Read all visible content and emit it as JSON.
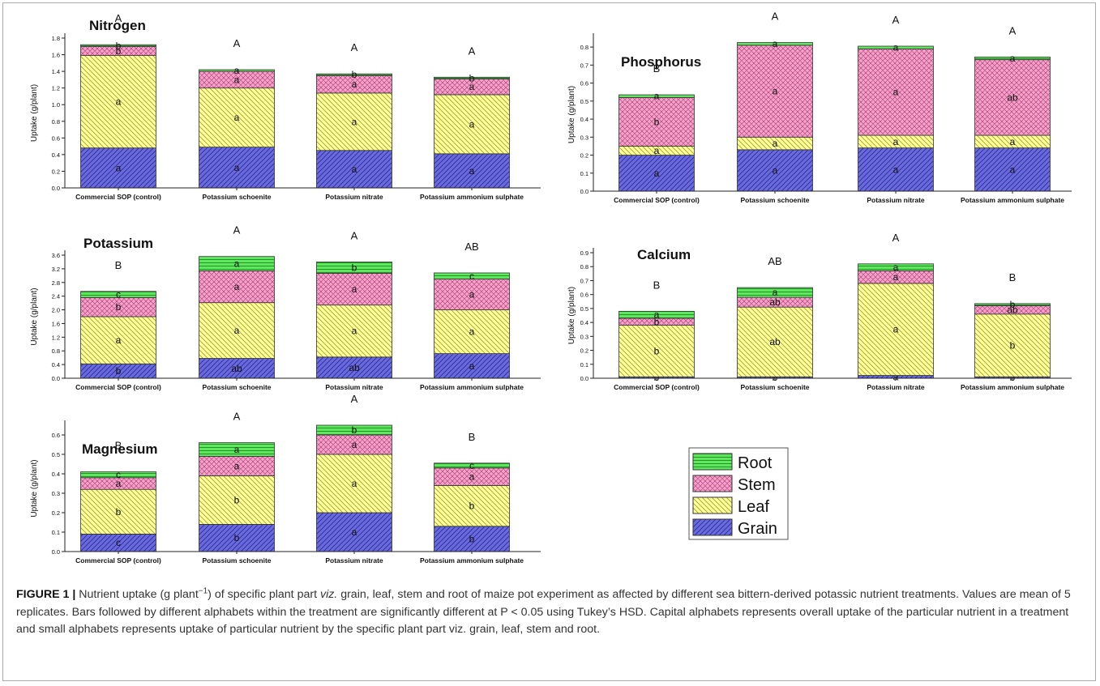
{
  "patterns": {
    "root": "#5ee85e",
    "stem": "#f2a3c9",
    "leaf": "#ffff99",
    "grain": "#6a6ae0"
  },
  "legend": {
    "items": [
      "Root",
      "Stem",
      "Leaf",
      "Grain"
    ]
  },
  "chart_data": [
    {
      "type": "bar",
      "stacked": true,
      "title": "Nitrogen",
      "xlabel": "",
      "ylabel": "Uptake (g/plant)",
      "ylim": [
        0,
        1.8
      ],
      "yticks": [
        "0.0",
        "0.2",
        "0.4",
        "0.6",
        "0.8",
        "1.0",
        "1.2",
        "1.4",
        "1.6",
        "1.8"
      ],
      "categories": [
        "Commercial SOP (control)",
        "Potassium schoenite",
        "Potassium nitrate",
        "Potassium ammonium sulphate"
      ],
      "series": [
        {
          "name": "Grain",
          "values": [
            0.48,
            0.49,
            0.45,
            0.41
          ],
          "labels": [
            "a",
            "a",
            "a",
            "a"
          ]
        },
        {
          "name": "Leaf",
          "values": [
            1.11,
            0.71,
            0.69,
            0.71
          ],
          "labels": [
            "a",
            "a",
            "a",
            "a"
          ]
        },
        {
          "name": "Stem",
          "values": [
            0.11,
            0.2,
            0.21,
            0.19
          ],
          "labels": [
            "b",
            "a",
            "a",
            "a"
          ]
        },
        {
          "name": "Root",
          "values": [
            0.02,
            0.02,
            0.02,
            0.02
          ],
          "labels": [
            "b",
            "a",
            "b",
            "b"
          ]
        }
      ],
      "totals_labels": [
        "A",
        "A",
        "A",
        "A"
      ]
    },
    {
      "type": "bar",
      "stacked": true,
      "title": "Phosphorus",
      "xlabel": "",
      "ylabel": "Uptake (g/plant)",
      "ylim": [
        0,
        0.85
      ],
      "yticks": [
        "0.0",
        "0.1",
        "0.2",
        "0.3",
        "0.4",
        "0.5",
        "0.6",
        "0.7",
        "0.8"
      ],
      "categories": [
        "Commercial SOP (control)",
        "Potassium schoenite",
        "Potassium nitrate",
        "Potassium ammonium sulphate"
      ],
      "series": [
        {
          "name": "Grain",
          "values": [
            0.2,
            0.23,
            0.24,
            0.24
          ],
          "labels": [
            "a",
            "a",
            "a",
            "a"
          ]
        },
        {
          "name": "Leaf",
          "values": [
            0.05,
            0.07,
            0.07,
            0.07
          ],
          "labels": [
            "a",
            "a",
            "a",
            "a"
          ]
        },
        {
          "name": "Stem",
          "values": [
            0.27,
            0.51,
            0.48,
            0.42
          ],
          "labels": [
            "b",
            "a",
            "a",
            "ab"
          ]
        },
        {
          "name": "Root",
          "values": [
            0.015,
            0.015,
            0.015,
            0.015
          ],
          "labels": [
            "a",
            "a",
            "a",
            "a"
          ]
        }
      ],
      "totals_labels": [
        "B",
        "A",
        "A",
        "A"
      ]
    },
    {
      "type": "bar",
      "stacked": true,
      "title": "Potassium",
      "xlabel": "",
      "ylabel": "Uptake (g/plant)",
      "ylim": [
        0,
        3.6
      ],
      "yticks": [
        "0.0",
        "0.4",
        "0.8",
        "1.2",
        "1.6",
        "2.0",
        "2.4",
        "2.8",
        "3.2",
        "3.6"
      ],
      "categories": [
        "Commercial SOP (control)",
        "Potassium schoenite",
        "Potassium nitrate",
        "Potassium ammonium sulphate"
      ],
      "series": [
        {
          "name": "Grain",
          "values": [
            0.42,
            0.58,
            0.62,
            0.72
          ],
          "labels": [
            "b",
            "ab",
            "ab",
            "a"
          ]
        },
        {
          "name": "Leaf",
          "values": [
            1.38,
            1.63,
            1.52,
            1.28
          ],
          "labels": [
            "a",
            "a",
            "a",
            "a"
          ]
        },
        {
          "name": "Stem",
          "values": [
            0.56,
            0.93,
            0.93,
            0.9
          ],
          "labels": [
            "b",
            "a",
            "a",
            "a"
          ]
        },
        {
          "name": "Root",
          "values": [
            0.18,
            0.42,
            0.33,
            0.18
          ],
          "labels": [
            "c",
            "a",
            "b",
            "c"
          ]
        }
      ],
      "totals_labels": [
        "B",
        "A",
        "A",
        "AB"
      ]
    },
    {
      "type": "bar",
      "stacked": true,
      "title": "Calcium",
      "xlabel": "",
      "ylabel": "Uptake (g/plant)",
      "ylim": [
        0,
        0.9
      ],
      "yticks": [
        "0.0",
        "0.1",
        "0.2",
        "0.3",
        "0.4",
        "0.5",
        "0.6",
        "0.7",
        "0.8",
        "0.9"
      ],
      "categories": [
        "Commercial SOP (control)",
        "Potassium schoenite",
        "Potassium nitrate",
        "Potassium ammonium sulphate"
      ],
      "series": [
        {
          "name": "Grain",
          "values": [
            0.01,
            0.01,
            0.02,
            0.01
          ],
          "labels": [
            "b",
            "b",
            "a",
            "b"
          ]
        },
        {
          "name": "Leaf",
          "values": [
            0.37,
            0.5,
            0.66,
            0.45
          ],
          "labels": [
            "b",
            "ab",
            "a",
            "b"
          ]
        },
        {
          "name": "Stem",
          "values": [
            0.05,
            0.07,
            0.09,
            0.06
          ],
          "labels": [
            "b",
            "ab",
            "a",
            "ab"
          ]
        },
        {
          "name": "Root",
          "values": [
            0.05,
            0.07,
            0.05,
            0.015
          ],
          "labels": [
            "a",
            "a",
            "a",
            "b"
          ]
        }
      ],
      "totals_labels": [
        "B",
        "AB",
        "A",
        "B"
      ]
    },
    {
      "type": "bar",
      "stacked": true,
      "title": "Magnesium",
      "xlabel": "",
      "ylabel": "Uptake (g/plant)",
      "ylim": [
        0,
        0.65
      ],
      "yticks": [
        "0.0",
        "0.1",
        "0.2",
        "0.3",
        "0.4",
        "0.5",
        "0.6"
      ],
      "categories": [
        "Commercial SOP (control)",
        "Potassium schoenite",
        "Potassium nitrate",
        "Potassium ammonium sulphate"
      ],
      "series": [
        {
          "name": "Grain",
          "values": [
            0.09,
            0.14,
            0.2,
            0.13
          ],
          "labels": [
            "c",
            "b",
            "a",
            "b"
          ]
        },
        {
          "name": "Leaf",
          "values": [
            0.23,
            0.25,
            0.3,
            0.21
          ],
          "labels": [
            "b",
            "b",
            "a",
            "b"
          ]
        },
        {
          "name": "Stem",
          "values": [
            0.06,
            0.1,
            0.1,
            0.09
          ],
          "labels": [
            "a",
            "a",
            "a",
            "a"
          ]
        },
        {
          "name": "Root",
          "values": [
            0.03,
            0.07,
            0.05,
            0.025
          ],
          "labels": [
            "c",
            "a",
            "b",
            "c"
          ]
        }
      ],
      "totals_labels": [
        "B",
        "A",
        "A",
        "B"
      ]
    }
  ],
  "caption": {
    "label": "FIGURE 1 |",
    "text_before": " Nutrient uptake (g plant",
    "superscript": "−1",
    "text_mid": ") of specific plant part ",
    "italic": "viz.",
    "text_after": " grain, leaf, stem and root of maize pot experiment as affected by different sea bittern-derived potassic nutrient treatments. Values are mean of 5 replicates. Bars followed by different alphabets within the treatment are significantly different at P < 0.05 using Tukey’s HSD. Capital alphabets represents overall uptake of the particular nutrient in a treatment and small alphabets represents uptake of particular nutrient by the specific plant part viz. grain, leaf, stem and root."
  }
}
